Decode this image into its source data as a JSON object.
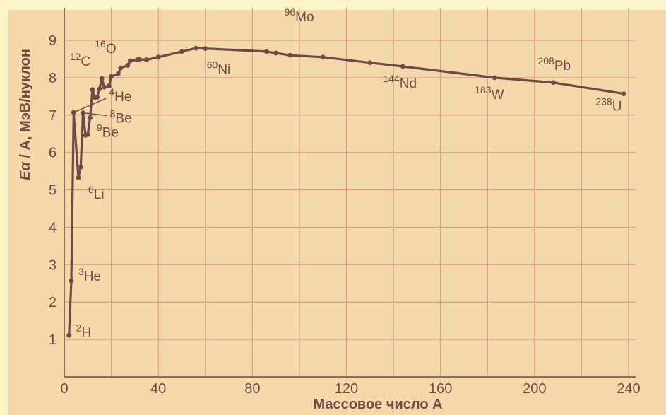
{
  "chart_data": {
    "type": "line",
    "xlabel": "Массовое число A",
    "ylabel": "Eα / A, МэВ/нуклон",
    "ylabel_symbol": "Eα",
    "ylabel_mid": " / A, ",
    "ylabel_unit": "МэВ/нуклон",
    "xlim": [
      0,
      240
    ],
    "ylim": [
      0,
      9
    ],
    "x_ticks": [
      0,
      40,
      80,
      120,
      160,
      200,
      240
    ],
    "y_ticks": [
      1,
      2,
      3,
      4,
      5,
      6,
      7,
      8,
      9
    ],
    "grid": true,
    "series": [
      {
        "x": [
          2,
          3,
          4,
          6,
          7,
          8,
          9,
          10,
          11,
          12,
          13,
          14,
          15,
          16,
          17,
          19,
          20,
          23,
          24,
          27,
          28,
          31,
          32,
          35,
          40,
          50,
          56,
          60,
          86,
          90,
          96,
          110,
          130,
          144,
          183,
          208,
          238
        ],
        "y": [
          1.11,
          2.57,
          7.07,
          5.33,
          5.61,
          7.06,
          6.46,
          6.48,
          6.93,
          7.68,
          7.47,
          7.48,
          7.7,
          7.98,
          7.75,
          7.78,
          8.03,
          8.11,
          8.26,
          8.33,
          8.45,
          8.48,
          8.49,
          8.48,
          8.55,
          8.7,
          8.79,
          8.78,
          8.7,
          8.66,
          8.6,
          8.55,
          8.4,
          8.3,
          8.0,
          7.87,
          7.57
        ]
      }
    ],
    "annotations": [
      {
        "mass": "2",
        "symbol": "H",
        "x": 2,
        "y": 1.11
      },
      {
        "mass": "3",
        "symbol": "He",
        "x": 3,
        "y": 2.57
      },
      {
        "mass": "6",
        "symbol": "Li",
        "x": 6,
        "y": 5.33
      },
      {
        "mass": "9",
        "symbol": "Be",
        "x": 9,
        "y": 6.46
      },
      {
        "mass": "8",
        "symbol": "Be",
        "x": 8,
        "y": 7.06
      },
      {
        "mass": "4",
        "symbol": "He",
        "x": 4,
        "y": 7.07
      },
      {
        "mass": "12",
        "symbol": "C",
        "x": 12,
        "y": 7.68
      },
      {
        "mass": "16",
        "symbol": "O",
        "x": 16,
        "y": 7.98
      },
      {
        "mass": "60",
        "symbol": "Ni",
        "x": 60,
        "y": 8.78
      },
      {
        "mass": "96",
        "symbol": "Mo",
        "x": 96,
        "y": 8.6
      },
      {
        "mass": "144",
        "symbol": "Nd",
        "x": 144,
        "y": 8.3
      },
      {
        "mass": "183",
        "symbol": "W",
        "x": 183,
        "y": 8.0
      },
      {
        "mass": "208",
        "symbol": "Pb",
        "x": 208,
        "y": 7.87
      },
      {
        "mass": "238",
        "symbol": "U",
        "x": 238,
        "y": 7.57
      }
    ]
  },
  "colors": {
    "background": "#f1d9a9",
    "page": "#fbf3c9",
    "grid": "#e29a86",
    "axis": "#8b6a62",
    "curve": "#6b4b48",
    "text": "#6e4a45"
  }
}
